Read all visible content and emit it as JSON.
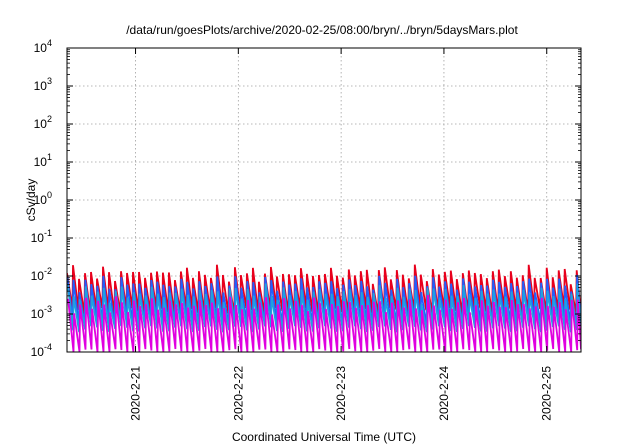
{
  "chart_data": {
    "type": "line",
    "title": "/data/run/goesPlots/archive/2020-02-25/08:00/bryn/../bryn/5daysMars.plot",
    "xlabel": "Coordinated Universal Time (UTC)",
    "ylabel": "cSv/day",
    "y_scale": "log",
    "ylim": [
      0.0001,
      10000
    ],
    "y_ticks": [
      {
        "value": 0.0001,
        "base": "10",
        "exp": "-4"
      },
      {
        "value": 0.001,
        "base": "10",
        "exp": "-3"
      },
      {
        "value": 0.01,
        "base": "10",
        "exp": "-2"
      },
      {
        "value": 0.1,
        "base": "10",
        "exp": "-1"
      },
      {
        "value": 1,
        "base": "10",
        "exp": "0"
      },
      {
        "value": 10,
        "base": "10",
        "exp": "1"
      },
      {
        "value": 100,
        "base": "10",
        "exp": "2"
      },
      {
        "value": 1000,
        "base": "10",
        "exp": "3"
      },
      {
        "value": 10000,
        "base": "10",
        "exp": "4"
      }
    ],
    "xlim": [
      "2020-02-20 08:00",
      "2020-02-25 08:00"
    ],
    "x_ticks": [
      {
        "value": "2020-02-21 00:00",
        "label": "2020-2-21"
      },
      {
        "value": "2020-02-22 00:00",
        "label": "2020-2-22"
      },
      {
        "value": "2020-02-23 00:00",
        "label": "2020-2-23"
      },
      {
        "value": "2020-02-24 00:00",
        "label": "2020-2-24"
      },
      {
        "value": "2020-02-25 00:00",
        "label": "2020-2-25"
      }
    ],
    "grid": true,
    "sawtooth_period_hours": 1.4,
    "series": [
      {
        "color": "#e8001c",
        "peak": 0.013,
        "trough": 0.0012
      },
      {
        "color": "#2060ff",
        "peak": 0.007,
        "trough": 0.0006
      },
      {
        "color": "#20a0e0",
        "peak": 0.004,
        "trough": 0.0004
      },
      {
        "color": "#e000e0",
        "peak": 0.002,
        "trough": 0.0001
      }
    ]
  }
}
